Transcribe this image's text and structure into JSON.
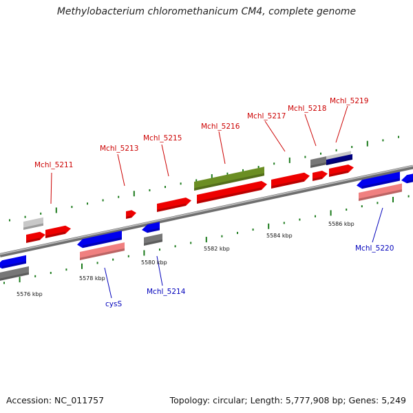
{
  "title": "Methylobacterium chloromethanicum CM4, complete genome",
  "footer": {
    "accession": "Accession: NC_011757",
    "summary": "Topology: circular; Length: 5,777,908 bp; Genes: 5,249"
  },
  "scale_labels": [
    "5576 kbp",
    "5578 kbp",
    "5580 kbp",
    "5582 kbp",
    "5584 kbp",
    "5586 kbp"
  ],
  "gene_labels": {
    "top": [
      "Mchl_5211",
      "Mchl_5213",
      "Mchl_5215",
      "Mchl_5216",
      "Mchl_5217",
      "Mchl_5218",
      "Mchl_5219"
    ],
    "bottom": [
      "cysS",
      "Mchl_5214",
      "Mchl_5220"
    ]
  },
  "colors": {
    "forward_gene": "#ee0000",
    "reverse_gene": "#0000ee",
    "rna_light": "#f08080",
    "pseudo_gray": "#777777",
    "light_gray": "#c8c8c8",
    "olive": "#6b8e23",
    "navy": "#000080",
    "tick": "#1a7a1a",
    "backbone": "#8a8a8a",
    "label_top": "#cc0000",
    "label_bottom": "#0000bb"
  }
}
